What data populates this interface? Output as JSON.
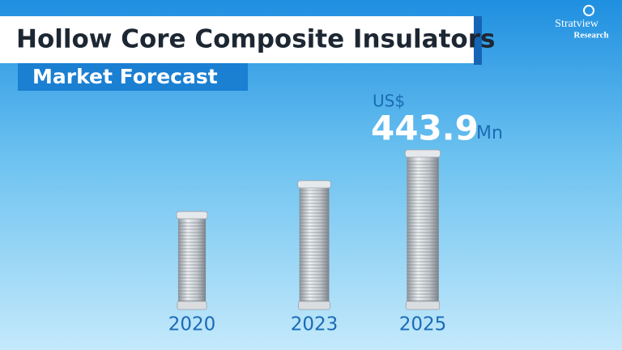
{
  "chart_data": {
    "type": "bar",
    "title": "Hollow Core Composite Insulators",
    "subtitle": "Market Forecast",
    "categories": [
      "2020",
      "2023",
      "2025"
    ],
    "values": [
      268,
      356,
      443.9
    ],
    "value_labels": [
      null,
      null,
      "443.9"
    ],
    "value_prefix": "US$",
    "value_suffix": "Mn",
    "color": "#c9ced3"
  },
  "logo": {
    "name": "Stratview",
    "sub": "Research"
  }
}
